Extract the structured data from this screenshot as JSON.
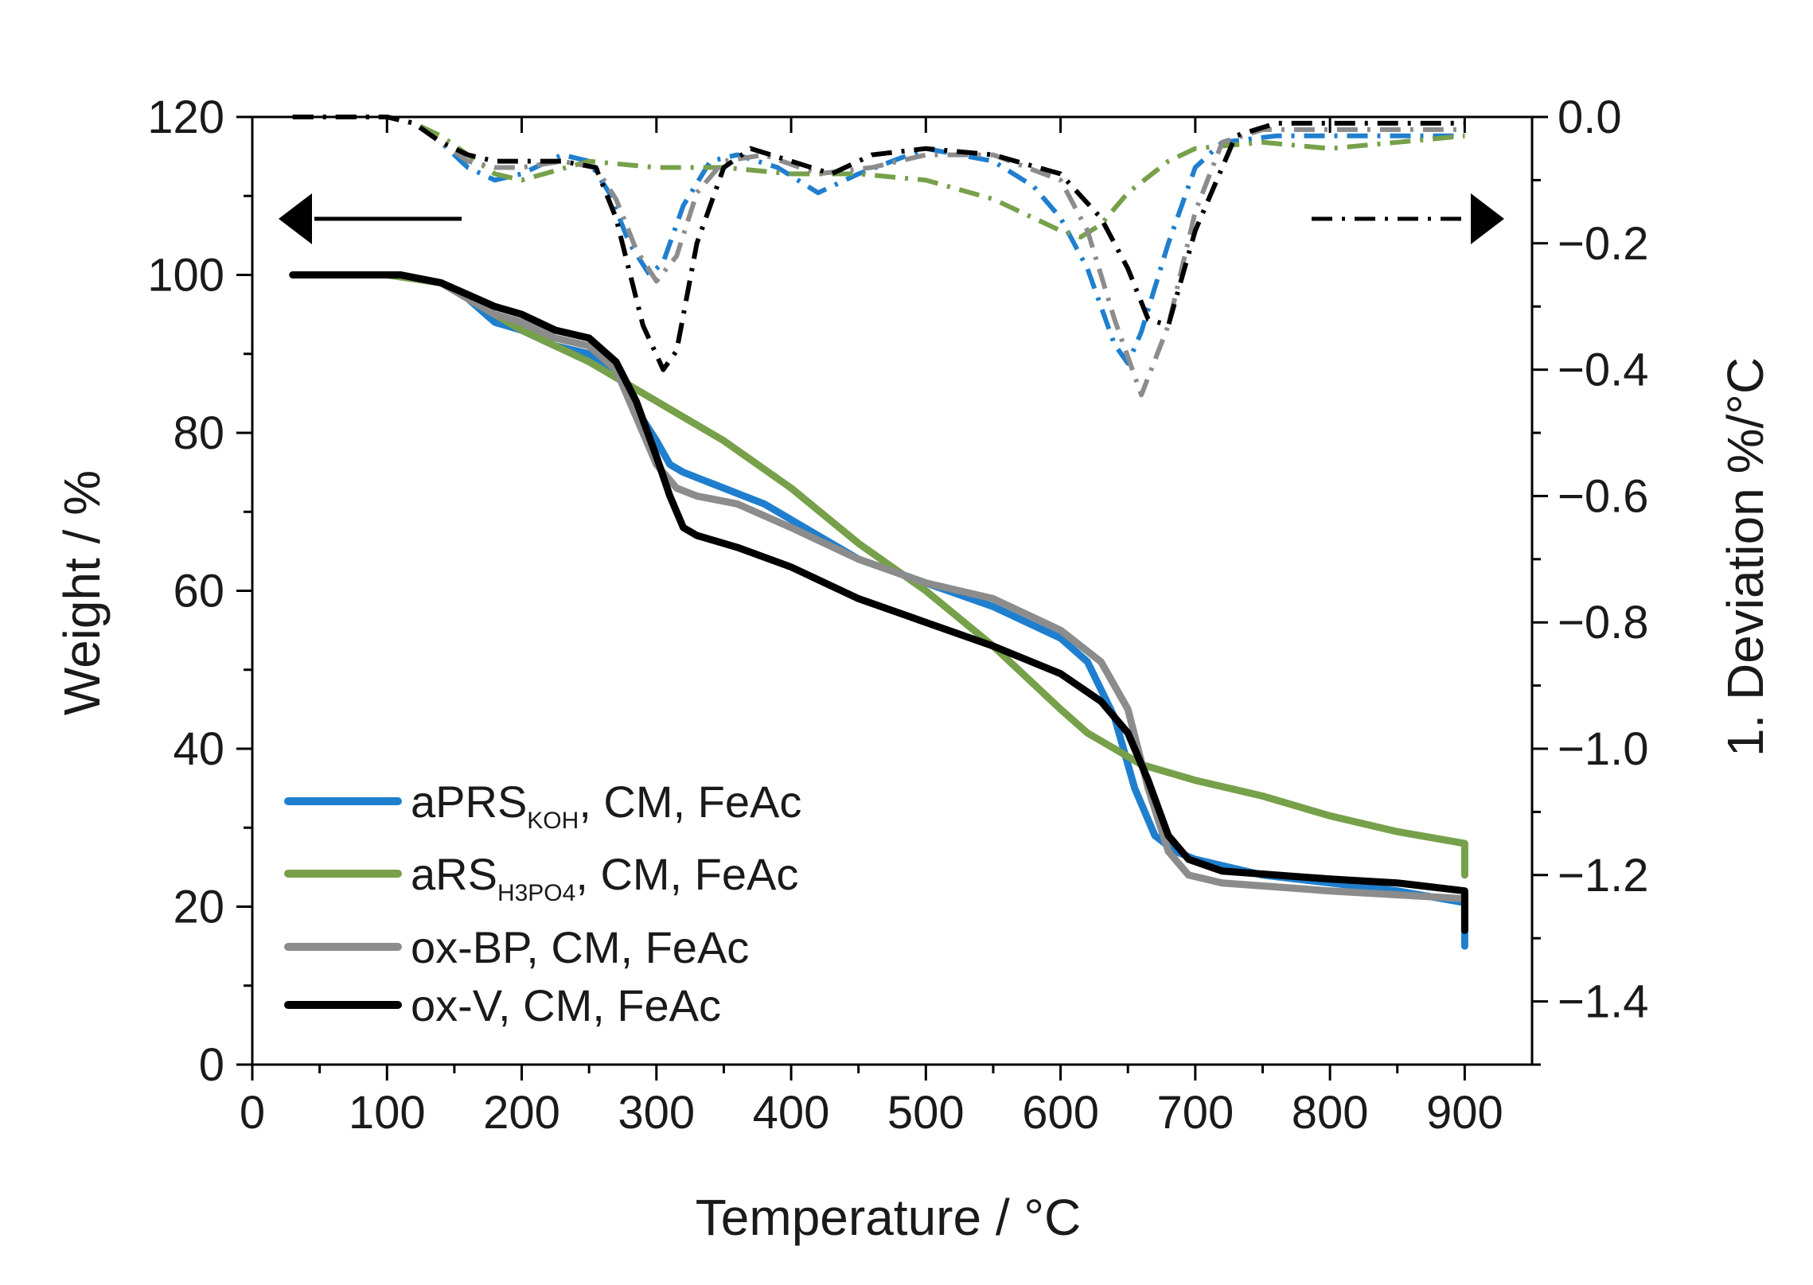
{
  "chart_data": {
    "type": "line",
    "xlabel": "Temperature / °C",
    "ylabel": "Weight / %",
    "y2label": "1. Deviation %/°C",
    "xlim": [
      0,
      950
    ],
    "ylim": [
      0,
      120
    ],
    "y2lim": [
      -1.5,
      0.0
    ],
    "x_ticks": [
      0,
      100,
      200,
      300,
      400,
      500,
      600,
      700,
      800,
      900
    ],
    "y_ticks": [
      0,
      20,
      40,
      60,
      80,
      100,
      120
    ],
    "y2_ticks": [
      0.0,
      -0.2,
      -0.4,
      -0.6,
      -0.8,
      -1.0,
      -1.2,
      -1.4
    ],
    "x_tick_labels": [
      "0",
      "100",
      "200",
      "300",
      "400",
      "500",
      "600",
      "700",
      "800",
      "900"
    ],
    "y_tick_labels": [
      "0",
      "20",
      "40",
      "60",
      "80",
      "100",
      "120"
    ],
    "y2_tick_labels": [
      "0.0",
      "−0.2",
      "−0.4",
      "−0.6",
      "−0.8",
      "−1.0",
      "−1.2",
      "−1.4"
    ],
    "colors": {
      "aPRS": "#1f7fce",
      "aRS": "#77a04a",
      "oxBP": "#8c8c8c",
      "oxV": "#000000"
    },
    "arrows": {
      "left": "weight axis",
      "right": "derivative axis"
    },
    "legend": [
      {
        "key": "aPRS",
        "main": "aPRS",
        "sub": "KOH",
        "rest": ", CM, FeAc"
      },
      {
        "key": "aRS",
        "main": "aRS",
        "sub": "H3PO4",
        "rest": ", CM, FeAc"
      },
      {
        "key": "oxBP",
        "main": "ox-BP, CM, FeAc",
        "sub": "",
        "rest": ""
      },
      {
        "key": "oxV",
        "main": "ox-V, CM, FeAc",
        "sub": "",
        "rest": ""
      }
    ],
    "series": [
      {
        "key": "aPRS",
        "axis": "left",
        "style": "solid",
        "x": [
          30,
          110,
          140,
          160,
          180,
          200,
          225,
          250,
          270,
          285,
          300,
          310,
          320,
          350,
          380,
          410,
          450,
          500,
          550,
          600,
          620,
          640,
          655,
          670,
          685,
          700,
          750,
          800,
          850,
          900,
          900
        ],
        "y": [
          100,
          100,
          99,
          97,
          94,
          93,
          91,
          90,
          88,
          83,
          79,
          76,
          75,
          73,
          71,
          68,
          64,
          61,
          58,
          54,
          51,
          44,
          35,
          29,
          27,
          26,
          24,
          23,
          22,
          20.5,
          15
        ]
      },
      {
        "key": "aRS",
        "axis": "left",
        "style": "solid",
        "x": [
          30,
          100,
          140,
          160,
          200,
          250,
          300,
          350,
          400,
          450,
          500,
          550,
          600,
          620,
          640,
          660,
          700,
          750,
          800,
          850,
          900,
          900
        ],
        "y": [
          100,
          100,
          99,
          97,
          93,
          89,
          84,
          79,
          73,
          66,
          60,
          53,
          45,
          42,
          40,
          38,
          36,
          34,
          31.5,
          29.5,
          28,
          24
        ]
      },
      {
        "key": "oxBP",
        "axis": "left",
        "style": "solid",
        "x": [
          30,
          110,
          140,
          160,
          180,
          200,
          225,
          250,
          270,
          285,
          300,
          315,
          330,
          360,
          400,
          450,
          500,
          550,
          600,
          630,
          650,
          665,
          680,
          695,
          720,
          800,
          850,
          900,
          900
        ],
        "y": [
          100,
          100,
          99,
          97,
          95,
          94,
          92,
          91,
          88,
          82,
          76,
          73,
          72,
          71,
          68,
          64,
          61,
          59,
          55,
          51,
          45,
          35,
          27,
          24,
          23,
          22,
          21.5,
          21,
          19
        ]
      },
      {
        "key": "oxV",
        "axis": "left",
        "style": "solid",
        "x": [
          30,
          110,
          140,
          160,
          180,
          200,
          225,
          250,
          270,
          285,
          300,
          310,
          320,
          330,
          360,
          400,
          450,
          500,
          550,
          600,
          630,
          650,
          665,
          680,
          695,
          720,
          800,
          850,
          900,
          900
        ],
        "y": [
          100,
          100,
          99,
          97.5,
          96,
          95,
          93,
          92,
          89,
          84,
          77,
          72,
          68,
          67,
          65.5,
          63,
          59,
          56,
          53,
          49.5,
          46,
          42,
          36,
          29,
          26,
          24.5,
          23.5,
          23,
          22,
          17
        ]
      },
      {
        "key": "aPRS",
        "axis": "right",
        "style": "dashdot",
        "x": [
          30,
          100,
          120,
          140,
          160,
          180,
          200,
          230,
          250,
          265,
          280,
          295,
          305,
          320,
          340,
          360,
          390,
          420,
          450,
          500,
          550,
          580,
          600,
          620,
          640,
          650,
          660,
          680,
          700,
          720,
          760,
          800,
          850,
          900
        ],
        "y": [
          0.0,
          0.0,
          -0.01,
          -0.04,
          -0.08,
          -0.1,
          -0.09,
          -0.06,
          -0.07,
          -0.12,
          -0.2,
          -0.25,
          -0.23,
          -0.14,
          -0.07,
          -0.06,
          -0.08,
          -0.12,
          -0.09,
          -0.05,
          -0.07,
          -0.11,
          -0.16,
          -0.24,
          -0.36,
          -0.39,
          -0.34,
          -0.2,
          -0.08,
          -0.04,
          -0.03,
          -0.03,
          -0.03,
          -0.03
        ]
      },
      {
        "key": "aRS",
        "axis": "right",
        "style": "dashdot",
        "x": [
          30,
          100,
          120,
          140,
          160,
          180,
          200,
          250,
          300,
          350,
          400,
          450,
          500,
          550,
          600,
          615,
          630,
          650,
          680,
          700,
          750,
          800,
          850,
          900
        ],
        "y": [
          0.0,
          0.0,
          -0.01,
          -0.03,
          -0.06,
          -0.09,
          -0.1,
          -0.07,
          -0.08,
          -0.08,
          -0.09,
          -0.09,
          -0.1,
          -0.13,
          -0.18,
          -0.19,
          -0.17,
          -0.12,
          -0.07,
          -0.05,
          -0.04,
          -0.05,
          -0.04,
          -0.03
        ]
      },
      {
        "key": "oxBP",
        "axis": "right",
        "style": "dashdot",
        "x": [
          30,
          100,
          120,
          140,
          160,
          180,
          200,
          230,
          255,
          270,
          285,
          300,
          315,
          330,
          350,
          380,
          420,
          460,
          500,
          550,
          600,
          620,
          640,
          660,
          680,
          700,
          720,
          750,
          800,
          850,
          900
        ],
        "y": [
          0.0,
          0.0,
          -0.01,
          -0.04,
          -0.07,
          -0.08,
          -0.08,
          -0.07,
          -0.08,
          -0.13,
          -0.21,
          -0.26,
          -0.22,
          -0.12,
          -0.07,
          -0.06,
          -0.09,
          -0.08,
          -0.06,
          -0.06,
          -0.1,
          -0.18,
          -0.32,
          -0.44,
          -0.33,
          -0.15,
          -0.04,
          -0.02,
          -0.02,
          -0.02,
          -0.02
        ]
      },
      {
        "key": "oxV",
        "axis": "right",
        "style": "dashdot",
        "x": [
          30,
          100,
          120,
          140,
          160,
          180,
          200,
          230,
          255,
          270,
          290,
          305,
          315,
          330,
          350,
          370,
          400,
          430,
          460,
          500,
          550,
          600,
          630,
          650,
          665,
          680,
          700,
          730,
          760,
          800,
          850,
          900
        ],
        "y": [
          0.0,
          0.0,
          -0.01,
          -0.04,
          -0.06,
          -0.07,
          -0.07,
          -0.07,
          -0.08,
          -0.16,
          -0.33,
          -0.4,
          -0.37,
          -0.2,
          -0.08,
          -0.05,
          -0.07,
          -0.09,
          -0.06,
          -0.05,
          -0.06,
          -0.09,
          -0.16,
          -0.24,
          -0.32,
          -0.33,
          -0.18,
          -0.03,
          -0.01,
          -0.01,
          -0.01,
          -0.01
        ]
      }
    ]
  }
}
